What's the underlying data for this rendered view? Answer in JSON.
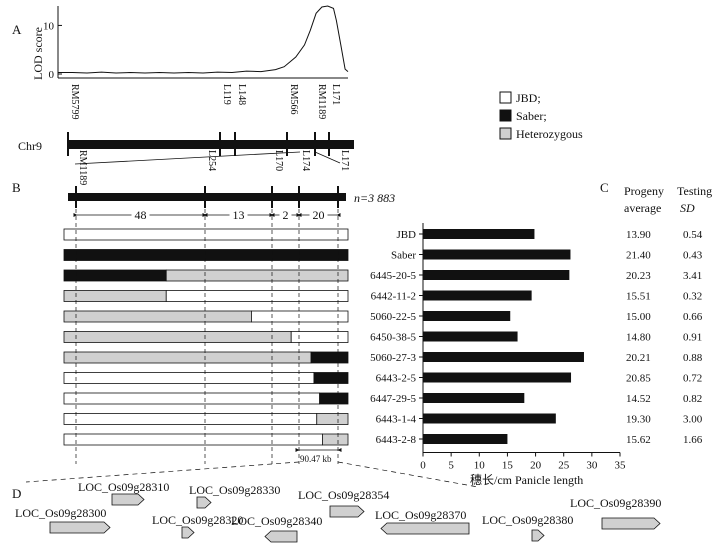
{
  "panels": {
    "a": "A",
    "b": "B",
    "c": "C",
    "d": "D"
  },
  "lod": {
    "ylabel": "LOD score",
    "ticks": [
      "10",
      "0"
    ],
    "yvals": [
      10,
      0
    ],
    "ymax": 14,
    "curve": [
      [
        0,
        0.3
      ],
      [
        0.05,
        0.3
      ],
      [
        0.1,
        0.2
      ],
      [
        0.15,
        0.4
      ],
      [
        0.2,
        0.2
      ],
      [
        0.25,
        0.3
      ],
      [
        0.3,
        0.2
      ],
      [
        0.35,
        0.3
      ],
      [
        0.4,
        0.2
      ],
      [
        0.45,
        0.3
      ],
      [
        0.5,
        0.2
      ],
      [
        0.55,
        0.4
      ],
      [
        0.6,
        0.3
      ],
      [
        0.65,
        0.6
      ],
      [
        0.7,
        0.5
      ],
      [
        0.75,
        0.9
      ],
      [
        0.78,
        1.5
      ],
      [
        0.82,
        3.5
      ],
      [
        0.85,
        6
      ],
      [
        0.87,
        9
      ],
      [
        0.89,
        12.5
      ],
      [
        0.91,
        13.8
      ],
      [
        0.93,
        14
      ],
      [
        0.95,
        13.5
      ],
      [
        0.96,
        11
      ],
      [
        0.975,
        6
      ],
      [
        0.99,
        1
      ],
      [
        1.0,
        0.5
      ]
    ]
  },
  "chr_label": "Chr9",
  "map_markers": [
    "RM5799",
    "L119",
    "L148",
    "RM566",
    "RM1189",
    "L171"
  ],
  "fine_markers": [
    "RM1189",
    "L254",
    "L170",
    "L174",
    "L171"
  ],
  "n_label": "n=3 883",
  "intervals": [
    {
      "value": "48",
      "from": 0,
      "to": 1
    },
    {
      "value": "13",
      "from": 1,
      "to": 2
    },
    {
      "value": "2",
      "from": 2,
      "to": 3
    },
    {
      "value": "20",
      "from": 3,
      "to": 4
    }
  ],
  "legend": [
    {
      "label": "JBD;",
      "color": "#ffffff"
    },
    {
      "label": "Saber;",
      "color": "#111111"
    },
    {
      "label": "Heterozygous",
      "color": "#d0d0d0"
    }
  ],
  "genotype_colors": {
    "jbd": "#ffffff",
    "saber": "#111111",
    "het": "#d0d0d0"
  },
  "lines": [
    {
      "segments": [
        [
          "jbd",
          1.0
        ]
      ]
    },
    {
      "segments": [
        [
          "saber",
          1.0
        ]
      ]
    },
    {
      "segments": [
        [
          "saber",
          0.36
        ],
        [
          "het",
          0.64
        ]
      ]
    },
    {
      "segments": [
        [
          "het",
          0.36
        ],
        [
          "jbd",
          0.64
        ]
      ]
    },
    {
      "segments": [
        [
          "het",
          0.66
        ],
        [
          "jbd",
          0.34
        ]
      ]
    },
    {
      "segments": [
        [
          "het",
          0.8
        ],
        [
          "jbd",
          0.2
        ]
      ]
    },
    {
      "segments": [
        [
          "het",
          0.87
        ],
        [
          "saber",
          0.13
        ]
      ]
    },
    {
      "segments": [
        [
          "jbd",
          0.88
        ],
        [
          "saber",
          0.12
        ]
      ]
    },
    {
      "segments": [
        [
          "jbd",
          0.9
        ],
        [
          "saber",
          0.1
        ]
      ]
    },
    {
      "segments": [
        [
          "jbd",
          0.89
        ],
        [
          "het",
          0.11
        ]
      ]
    },
    {
      "segments": [
        [
          "jbd",
          0.91
        ],
        [
          "het",
          0.09
        ]
      ]
    }
  ],
  "kb_label": "90.47 kb",
  "table_headers": {
    "progeny": [
      "Progeny",
      "average"
    ],
    "testing": [
      "Testing",
      "SD"
    ]
  },
  "chart_data": {
    "type": "bar",
    "orientation": "horizontal",
    "categories": [
      "JBD",
      "Saber",
      "6445-20-5",
      "6442-11-2",
      "5060-22-5",
      "6450-38-5",
      "5060-27-3",
      "6443-2-5",
      "6447-29-5",
      "6443-1-4",
      "6443-2-8"
    ],
    "values": [
      19.8,
      26.2,
      26.0,
      19.3,
      15.5,
      16.8,
      28.6,
      26.3,
      18.0,
      23.6,
      15.0
    ],
    "progeny_average": [
      "13.90",
      "21.40",
      "20.23",
      "15.51",
      "15.00",
      "14.80",
      "20.21",
      "20.85",
      "14.52",
      "19.30",
      "15.62"
    ],
    "testing_sd": [
      "0.54",
      "0.43",
      "3.41",
      "0.32",
      "0.66",
      "0.91",
      "0.88",
      "0.72",
      "0.82",
      "3.00",
      "1.66"
    ],
    "xlim": [
      0,
      35
    ],
    "ticks": [
      0,
      5,
      10,
      15,
      20,
      25,
      30,
      35
    ],
    "xlabel": "穗长/cm  Panicle length",
    "ylabel": "",
    "title": ""
  },
  "genes": [
    {
      "name": "LOC_Os09g28310",
      "dir": "right",
      "w": 32
    },
    {
      "name": "LOC_Os09g28330",
      "dir": "right",
      "w": 14
    },
    {
      "name": "LOC_Os09g28354",
      "dir": "right",
      "w": 34
    },
    {
      "name": "LOC_Os09g28300",
      "dir": "right",
      "w": 60
    },
    {
      "name": "LOC_Os09g28320",
      "dir": "right",
      "w": 12
    },
    {
      "name": "LOC_Os09g28340",
      "dir": "left",
      "w": 32
    },
    {
      "name": "LOC_Os09g28370",
      "dir": "left",
      "w": 88
    },
    {
      "name": "LOC_Os09g28380",
      "dir": "right",
      "w": 12
    },
    {
      "name": "LOC_Os09g28390",
      "dir": "right",
      "w": 58
    }
  ]
}
